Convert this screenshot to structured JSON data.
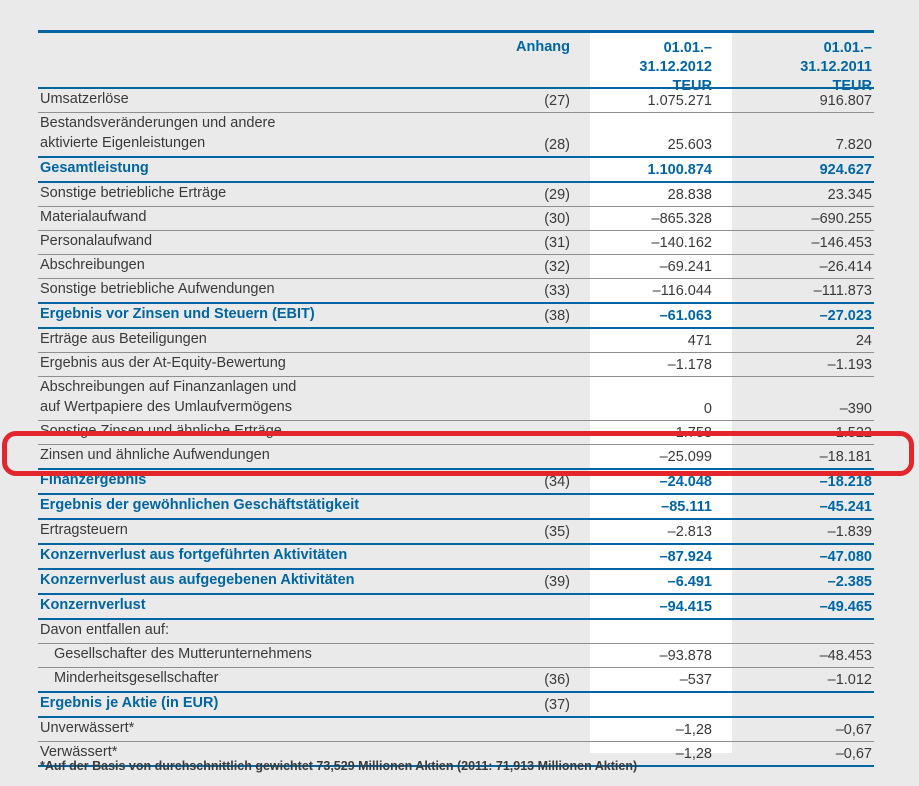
{
  "page": {
    "background_color": "#eaeaea",
    "accent_blue": "#0066a3",
    "text_color": "#3a3a3a",
    "separator_gray": "#8f8f8f",
    "annotation_red": "#e2262b",
    "highlight_column_color": "#ffffff"
  },
  "table": {
    "header": {
      "anhang": "Anhang",
      "col2012": "01.01.–\n31.12.2012\nTEUR",
      "col2011": "01.01.–\n31.12.2011\nTEUR"
    },
    "rows": [
      {
        "label": "Umsatzerlöse",
        "anhang": "(27)",
        "v2012": "1.075.271",
        "v2011": "916.807"
      },
      {
        "label": "Bestandsveränderungen und andere\naktivierte Eigenleistungen",
        "anhang": "(28)",
        "v2012": "25.603",
        "v2011": "7.820",
        "twoline": true
      },
      {
        "label": "Gesamtleistung",
        "v2012": "1.100.874",
        "v2011": "924.627",
        "emphasis": true
      },
      {
        "label": "Sonstige betriebliche Erträge",
        "anhang": "(29)",
        "v2012": "28.838",
        "v2011": "23.345"
      },
      {
        "label": "Materialaufwand",
        "anhang": "(30)",
        "v2012": "–865.328",
        "v2011": "–690.255"
      },
      {
        "label": "Personalaufwand",
        "anhang": "(31)",
        "v2012": "–140.162",
        "v2011": "–146.453"
      },
      {
        "label": "Abschreibungen",
        "anhang": "(32)",
        "v2012": "–69.241",
        "v2011": "–26.414"
      },
      {
        "label": "Sonstige betriebliche Aufwendungen",
        "anhang": "(33)",
        "v2012": "–116.044",
        "v2011": "–111.873"
      },
      {
        "label": "Ergebnis vor Zinsen und Steuern (EBIT)",
        "anhang": "(38)",
        "v2012": "–61.063",
        "v2011": "–27.023",
        "emphasis": true
      },
      {
        "label": "Erträge aus Beteiligungen",
        "v2012": "471",
        "v2011": "24"
      },
      {
        "label": "Ergebnis aus der At-Equity-Bewertung",
        "v2012": "–1.178",
        "v2011": "–1.193"
      },
      {
        "label": "Abschreibungen auf Finanzanlagen und\nauf Wertpapiere des Umlaufvermögens",
        "v2012": "0",
        "v2011": "–390",
        "twoline": true
      },
      {
        "label": "Sonstige Zinsen und ähnliche Erträge",
        "v2012": "1.758",
        "v2011": "1.522"
      },
      {
        "label": "Zinsen und ähnliche Aufwendungen",
        "v2012": "–25.099",
        "v2011": "–18.181",
        "annotated": true
      },
      {
        "label": "Finanzergebnis",
        "anhang": "(34)",
        "v2012": "–24.048",
        "v2011": "–18.218",
        "emphasis": true
      },
      {
        "label": "Ergebnis der gewöhnlichen Geschäftstätigkeit",
        "v2012": "–85.111",
        "v2011": "–45.241",
        "emphasis": true
      },
      {
        "label": "Ertragsteuern",
        "anhang": "(35)",
        "v2012": "–2.813",
        "v2011": "–1.839"
      },
      {
        "label": "Konzernverlust aus fortgeführten Aktivitäten",
        "v2012": "–87.924",
        "v2011": "–47.080",
        "emphasis": true
      },
      {
        "label": "Konzernverlust aus aufgegebenen Aktivitäten",
        "anhang": "(39)",
        "v2012": "–6.491",
        "v2011": "–2.385",
        "emphasis": true
      },
      {
        "label": "Konzernverlust",
        "v2012": "–94.415",
        "v2011": "–49.465",
        "emphasis": true
      },
      {
        "label": "Davon entfallen auf:"
      },
      {
        "label": "Gesellschafter des Mutterunternehmens",
        "v2012": "–93.878",
        "v2011": "–48.453",
        "indent": true
      },
      {
        "label": "Minderheitsgesellschafter",
        "anhang": "(36)",
        "v2012": "–537",
        "v2011": "–1.012",
        "indent": true
      },
      {
        "label": "Ergebnis je Aktie (in EUR)",
        "anhang": "(37)",
        "emphasis": true
      },
      {
        "label": "Unverwässert*",
        "v2012": "–1,28",
        "v2011": "–0,67"
      },
      {
        "label": "Verwässert*",
        "v2012": "–1,28",
        "v2011": "–0,67"
      }
    ],
    "footnote": "*Auf der Basis von durchschnittlich gewichtet 73,529 Millionen Aktien (2011: 71,913 Millionen Aktien)"
  },
  "annotation": {
    "type": "red-rounded-rectangle",
    "target_row_label": "Zinsen und ähnliche Aufwendungen"
  }
}
